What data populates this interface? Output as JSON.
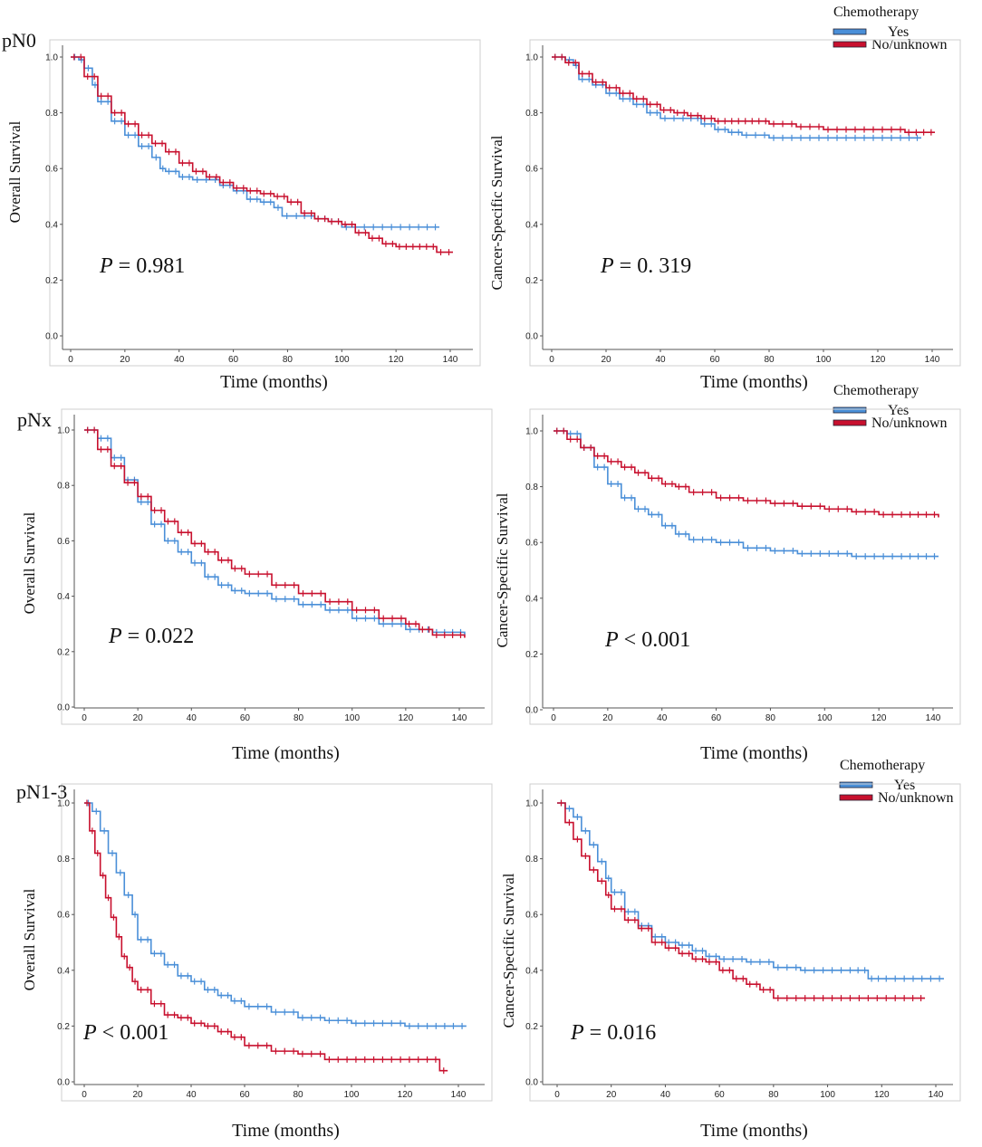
{
  "colors": {
    "yes": "#4a8fd8",
    "no": "#c8102e",
    "frame": "#cfcfcf"
  },
  "chart_data": [
    {
      "type": "line",
      "row_label": "pN0",
      "title": "",
      "xlabel": "Time (months)",
      "ylabel": "Overall Survival",
      "xlim": [
        0,
        140
      ],
      "ylim": [
        0,
        1
      ],
      "x_ticks": [
        "0",
        "20",
        "40",
        "60",
        "80",
        "100",
        "120",
        "140"
      ],
      "y_ticks": [
        "0.0",
        "0.2",
        "0.4",
        "0.6",
        "0.8",
        "1.0"
      ],
      "p_prefix": "P",
      "p_text": "= 0.981",
      "legend": {
        "title": "Chemotherapy",
        "items": [
          "Yes",
          "No/unknown"
        ]
      },
      "series": [
        {
          "name": "Yes",
          "x": [
            0,
            3,
            5,
            8,
            10,
            15,
            20,
            25,
            30,
            33,
            35,
            40,
            45,
            55,
            60,
            65,
            70,
            75,
            78,
            85,
            90,
            95,
            100,
            110,
            120,
            130,
            136
          ],
          "y": [
            1.0,
            0.99,
            0.96,
            0.9,
            0.84,
            0.77,
            0.72,
            0.68,
            0.64,
            0.6,
            0.59,
            0.57,
            0.56,
            0.54,
            0.52,
            0.49,
            0.48,
            0.46,
            0.43,
            0.43,
            0.42,
            0.41,
            0.39,
            0.39,
            0.39,
            0.39,
            0.39
          ]
        },
        {
          "name": "No/unknown",
          "x": [
            0,
            5,
            10,
            15,
            20,
            25,
            30,
            35,
            40,
            45,
            50,
            55,
            60,
            65,
            70,
            75,
            80,
            85,
            90,
            95,
            100,
            105,
            110,
            115,
            120,
            125,
            130,
            135,
            141
          ],
          "y": [
            1.0,
            0.93,
            0.86,
            0.8,
            0.76,
            0.72,
            0.69,
            0.66,
            0.62,
            0.59,
            0.57,
            0.55,
            0.53,
            0.52,
            0.51,
            0.5,
            0.48,
            0.44,
            0.42,
            0.41,
            0.4,
            0.37,
            0.35,
            0.33,
            0.32,
            0.32,
            0.32,
            0.3,
            0.3
          ]
        }
      ]
    },
    {
      "type": "line",
      "row_label": "",
      "title": "",
      "xlabel": "Time (months)",
      "ylabel": "Cancer-Specific Survival",
      "xlim": [
        0,
        140
      ],
      "ylim": [
        0,
        1
      ],
      "x_ticks": [
        "0",
        "20",
        "40",
        "60",
        "80",
        "100",
        "120",
        "140"
      ],
      "y_ticks": [
        "0.0",
        "0.2",
        "0.4",
        "0.6",
        "0.8",
        "1.0"
      ],
      "p_prefix": "P",
      "p_text": "= 0. 319",
      "legend": {
        "title": "Chemotherapy",
        "items": [
          "Yes",
          "No/unknown"
        ]
      },
      "series": [
        {
          "name": "Yes",
          "x": [
            0,
            5,
            8,
            10,
            15,
            20,
            25,
            30,
            35,
            40,
            50,
            55,
            60,
            65,
            70,
            80,
            90,
            100,
            110,
            120,
            130,
            136
          ],
          "y": [
            1.0,
            0.99,
            0.97,
            0.92,
            0.9,
            0.87,
            0.85,
            0.83,
            0.8,
            0.78,
            0.78,
            0.76,
            0.74,
            0.73,
            0.72,
            0.71,
            0.71,
            0.71,
            0.71,
            0.71,
            0.71,
            0.71
          ]
        },
        {
          "name": "No/unknown",
          "x": [
            0,
            5,
            10,
            15,
            20,
            25,
            30,
            35,
            40,
            45,
            50,
            55,
            60,
            65,
            70,
            75,
            80,
            90,
            100,
            110,
            120,
            130,
            141
          ],
          "y": [
            1.0,
            0.98,
            0.94,
            0.91,
            0.89,
            0.87,
            0.85,
            0.83,
            0.81,
            0.8,
            0.79,
            0.78,
            0.77,
            0.77,
            0.77,
            0.77,
            0.76,
            0.75,
            0.74,
            0.74,
            0.74,
            0.73,
            0.73
          ]
        }
      ]
    },
    {
      "type": "line",
      "row_label": "pNx",
      "title": "",
      "xlabel": "Time (months)",
      "ylabel": "Overall Survival",
      "xlim": [
        0,
        140
      ],
      "ylim": [
        0,
        1
      ],
      "x_ticks": [
        "0",
        "20",
        "40",
        "60",
        "80",
        "100",
        "120",
        "140"
      ],
      "y_ticks": [
        "0.0",
        "0.2",
        "0.4",
        "0.6",
        "0.8",
        "1.0"
      ],
      "p_prefix": "P",
      "p_text": "= 0.022",
      "legend": {
        "title": "Chemotherapy",
        "items": [
          "Yes",
          "No/unknown"
        ]
      },
      "series": [
        {
          "name": "Yes",
          "x": [
            0,
            5,
            10,
            15,
            20,
            25,
            30,
            35,
            40,
            45,
            50,
            55,
            60,
            70,
            80,
            90,
            100,
            110,
            120,
            130,
            142
          ],
          "y": [
            1.0,
            0.97,
            0.9,
            0.82,
            0.74,
            0.66,
            0.6,
            0.56,
            0.52,
            0.47,
            0.44,
            0.42,
            0.41,
            0.39,
            0.37,
            0.35,
            0.32,
            0.3,
            0.28,
            0.27,
            0.26
          ]
        },
        {
          "name": "No/unknown",
          "x": [
            0,
            5,
            10,
            15,
            20,
            25,
            30,
            35,
            40,
            45,
            50,
            55,
            60,
            70,
            80,
            90,
            100,
            110,
            120,
            125,
            130,
            142
          ],
          "y": [
            1.0,
            0.93,
            0.87,
            0.81,
            0.76,
            0.71,
            0.67,
            0.63,
            0.59,
            0.56,
            0.53,
            0.5,
            0.48,
            0.44,
            0.41,
            0.38,
            0.35,
            0.32,
            0.3,
            0.28,
            0.26,
            0.25
          ]
        }
      ]
    },
    {
      "type": "line",
      "row_label": "",
      "title": "",
      "xlabel": "Time (months)",
      "ylabel": "Cancer-Specific Survival",
      "xlim": [
        0,
        140
      ],
      "ylim": [
        0,
        1
      ],
      "x_ticks": [
        "0",
        "20",
        "40",
        "60",
        "80",
        "100",
        "120",
        "140"
      ],
      "y_ticks": [
        "0.0",
        "0.2",
        "0.4",
        "0.6",
        "0.8",
        "1.0"
      ],
      "p_prefix": "P",
      "p_text": "< 0.001",
      "legend": {
        "title": "Chemotherapy",
        "items": [
          "Yes",
          "No/unknown"
        ]
      },
      "series": [
        {
          "name": "Yes",
          "x": [
            0,
            5,
            10,
            15,
            20,
            25,
            30,
            35,
            40,
            45,
            50,
            60,
            70,
            80,
            90,
            100,
            110,
            120,
            130,
            142
          ],
          "y": [
            1.0,
            0.99,
            0.94,
            0.87,
            0.81,
            0.76,
            0.72,
            0.7,
            0.66,
            0.63,
            0.61,
            0.6,
            0.58,
            0.57,
            0.56,
            0.56,
            0.55,
            0.55,
            0.55,
            0.55
          ]
        },
        {
          "name": "No/unknown",
          "x": [
            0,
            5,
            10,
            15,
            20,
            25,
            30,
            35,
            40,
            45,
            50,
            60,
            70,
            80,
            90,
            100,
            110,
            120,
            130,
            142
          ],
          "y": [
            1.0,
            0.97,
            0.94,
            0.91,
            0.89,
            0.87,
            0.85,
            0.83,
            0.81,
            0.8,
            0.78,
            0.76,
            0.75,
            0.74,
            0.73,
            0.72,
            0.71,
            0.7,
            0.7,
            0.69
          ]
        }
      ]
    },
    {
      "type": "line",
      "row_label": "pN1-3",
      "title": "",
      "xlabel": "Time (months)",
      "ylabel": "Overall Survival",
      "xlim": [
        0,
        140
      ],
      "ylim": [
        0,
        1
      ],
      "x_ticks": [
        "0",
        "20",
        "40",
        "60",
        "80",
        "100",
        "120",
        "140"
      ],
      "y_ticks": [
        "0.0",
        "0.2",
        "0.4",
        "0.6",
        "0.8",
        "1.0"
      ],
      "p_prefix": "P",
      "p_text": "< 0.001",
      "legend": {
        "title": "Chemotherapy",
        "items": [
          "Yes",
          "No/unknown"
        ]
      },
      "series": [
        {
          "name": "Yes",
          "x": [
            0,
            3,
            6,
            9,
            12,
            15,
            18,
            20,
            25,
            30,
            35,
            40,
            45,
            50,
            55,
            60,
            70,
            80,
            90,
            100,
            110,
            120,
            130,
            143
          ],
          "y": [
            1.0,
            0.97,
            0.9,
            0.82,
            0.75,
            0.67,
            0.6,
            0.51,
            0.46,
            0.42,
            0.38,
            0.36,
            0.33,
            0.31,
            0.29,
            0.27,
            0.25,
            0.23,
            0.22,
            0.21,
            0.21,
            0.2,
            0.2,
            0.2
          ]
        },
        {
          "name": "No/unknown",
          "x": [
            0,
            2,
            4,
            6,
            8,
            10,
            12,
            14,
            16,
            18,
            20,
            25,
            30,
            35,
            40,
            45,
            50,
            55,
            60,
            70,
            80,
            90,
            100,
            110,
            120,
            130,
            133,
            136
          ],
          "y": [
            1.0,
            0.9,
            0.82,
            0.74,
            0.66,
            0.59,
            0.52,
            0.45,
            0.41,
            0.36,
            0.33,
            0.28,
            0.24,
            0.23,
            0.21,
            0.2,
            0.18,
            0.16,
            0.13,
            0.11,
            0.1,
            0.08,
            0.08,
            0.08,
            0.08,
            0.08,
            0.04,
            0.04
          ]
        }
      ]
    },
    {
      "type": "line",
      "row_label": "",
      "title": "",
      "xlabel": "Time (months)",
      "ylabel": "Cancer-Specific Survival",
      "xlim": [
        0,
        140
      ],
      "ylim": [
        0,
        1
      ],
      "x_ticks": [
        "0",
        "20",
        "40",
        "60",
        "80",
        "100",
        "120",
        "140"
      ],
      "y_ticks": [
        "0.0",
        "0.2",
        "0.4",
        "0.6",
        "0.8",
        "1.0"
      ],
      "p_prefix": "P",
      "p_text": "= 0.016",
      "legend": {
        "title": "Chemotherapy",
        "items": [
          "Yes",
          "No/unknown"
        ]
      },
      "series": [
        {
          "name": "Yes",
          "x": [
            0,
            3,
            6,
            9,
            12,
            15,
            18,
            20,
            25,
            30,
            35,
            40,
            45,
            50,
            55,
            60,
            70,
            80,
            90,
            100,
            110,
            115,
            120,
            130,
            143
          ],
          "y": [
            1.0,
            0.98,
            0.95,
            0.9,
            0.85,
            0.79,
            0.73,
            0.68,
            0.61,
            0.56,
            0.52,
            0.5,
            0.49,
            0.47,
            0.45,
            0.44,
            0.43,
            0.41,
            0.4,
            0.4,
            0.4,
            0.37,
            0.37,
            0.37,
            0.37
          ]
        },
        {
          "name": "No/unknown",
          "x": [
            0,
            3,
            6,
            9,
            12,
            15,
            18,
            20,
            25,
            30,
            35,
            40,
            45,
            50,
            55,
            60,
            65,
            70,
            75,
            80,
            90,
            100,
            110,
            120,
            130,
            136
          ],
          "y": [
            1.0,
            0.93,
            0.87,
            0.81,
            0.76,
            0.72,
            0.67,
            0.62,
            0.58,
            0.55,
            0.5,
            0.48,
            0.46,
            0.44,
            0.43,
            0.4,
            0.37,
            0.35,
            0.33,
            0.3,
            0.3,
            0.3,
            0.3,
            0.3,
            0.3,
            0.3
          ]
        }
      ]
    }
  ]
}
